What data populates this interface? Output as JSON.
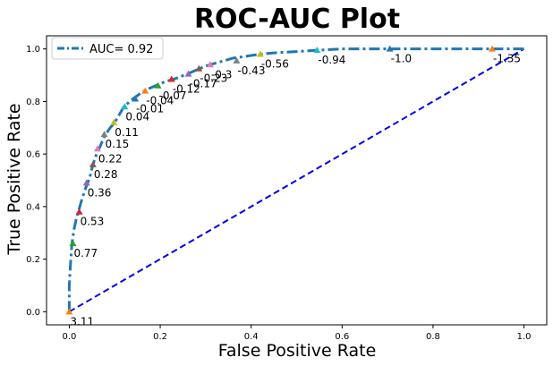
{
  "chart_data": {
    "type": "line",
    "title": "ROC-AUC Plot",
    "xlabel": "False Positive Rate",
    "ylabel": "True Positive Rate",
    "xlim": [
      -0.05,
      1.05
    ],
    "ylim": [
      -0.05,
      1.05
    ],
    "xticks": [
      0.0,
      0.2,
      0.4,
      0.6,
      0.8,
      1.0
    ],
    "yticks": [
      0.0,
      0.2,
      0.4,
      0.6,
      0.8,
      1.0
    ],
    "xtick_labels": [
      "0.0",
      "0.2",
      "0.4",
      "0.6",
      "0.8",
      "1.0"
    ],
    "ytick_labels": [
      "0.0",
      "0.2",
      "0.4",
      "0.6",
      "0.8",
      "1.0"
    ],
    "grid": false,
    "legend_position": "top-left",
    "legend": [
      "AUC= 0.92"
    ],
    "roc_curve": {
      "name": "AUC= 0.92",
      "color": "#1f77b4",
      "style": "dashdot",
      "x": [
        0.0,
        0.0,
        0.003,
        0.006,
        0.01,
        0.015,
        0.02,
        0.028,
        0.036,
        0.045,
        0.052,
        0.06,
        0.068,
        0.078,
        0.09,
        0.1,
        0.11,
        0.12,
        0.14,
        0.16,
        0.17,
        0.19,
        0.21,
        0.23,
        0.26,
        0.28,
        0.3,
        0.33,
        0.36,
        0.4,
        0.42,
        0.45,
        0.5,
        0.545,
        0.6,
        0.705,
        0.8,
        0.93,
        1.0
      ],
      "y": [
        0.0,
        0.1,
        0.19,
        0.26,
        0.31,
        0.35,
        0.38,
        0.43,
        0.47,
        0.51,
        0.56,
        0.6,
        0.63,
        0.67,
        0.7,
        0.72,
        0.75,
        0.78,
        0.81,
        0.835,
        0.845,
        0.86,
        0.875,
        0.885,
        0.905,
        0.92,
        0.935,
        0.95,
        0.965,
        0.975,
        0.98,
        0.985,
        0.99,
        0.995,
        1.0,
        1.0,
        1.0,
        1.0,
        1.0
      ]
    },
    "diagonal": {
      "color": "#0000ee",
      "style": "dashed",
      "x": [
        0.0,
        1.0
      ],
      "y": [
        0.0,
        1.0
      ]
    },
    "threshold_markers": [
      {
        "label": "3.11",
        "x": 0.0,
        "y": 0.0,
        "color": "#ff7f0e"
      },
      {
        "label": "0.77",
        "x": 0.008,
        "y": 0.26,
        "color": "#2ca02c"
      },
      {
        "label": "0.53",
        "x": 0.022,
        "y": 0.38,
        "color": "#d62728"
      },
      {
        "label": "0.36",
        "x": 0.038,
        "y": 0.49,
        "color": "#9467bd"
      },
      {
        "label": "0.28",
        "x": 0.052,
        "y": 0.56,
        "color": "#8c564b"
      },
      {
        "label": "0.22",
        "x": 0.062,
        "y": 0.62,
        "color": "#e377c2"
      },
      {
        "label": "0.15",
        "x": 0.077,
        "y": 0.675,
        "color": "#7f7f7f"
      },
      {
        "label": "0.11",
        "x": 0.098,
        "y": 0.72,
        "color": "#bcbd22"
      },
      {
        "label": "0.04",
        "x": 0.122,
        "y": 0.78,
        "color": "#17becf"
      },
      {
        "label": "-0.01",
        "x": 0.145,
        "y": 0.81,
        "color": "#1f77b4"
      },
      {
        "label": "-0.04",
        "x": 0.167,
        "y": 0.84,
        "color": "#ff7f0e"
      },
      {
        "label": "-0.07",
        "x": 0.195,
        "y": 0.86,
        "color": "#2ca02c"
      },
      {
        "label": "-0.12",
        "x": 0.225,
        "y": 0.885,
        "color": "#d62728"
      },
      {
        "label": "-0.17",
        "x": 0.262,
        "y": 0.905,
        "color": "#9467bd"
      },
      {
        "label": "-0.23",
        "x": 0.285,
        "y": 0.925,
        "color": "#8c564b"
      },
      {
        "label": "-0.3",
        "x": 0.31,
        "y": 0.94,
        "color": "#e377c2"
      },
      {
        "label": "-0.43",
        "x": 0.368,
        "y": 0.955,
        "color": "#7f7f7f"
      },
      {
        "label": "-0.56",
        "x": 0.42,
        "y": 0.98,
        "color": "#bcbd22"
      },
      {
        "label": "-0.94",
        "x": 0.545,
        "y": 0.995,
        "color": "#17becf"
      },
      {
        "label": "-1.0",
        "x": 0.705,
        "y": 1.0,
        "color": "#1f77b4"
      },
      {
        "label": "-1.35",
        "x": 0.93,
        "y": 1.0,
        "color": "#ff7f0e"
      }
    ]
  }
}
